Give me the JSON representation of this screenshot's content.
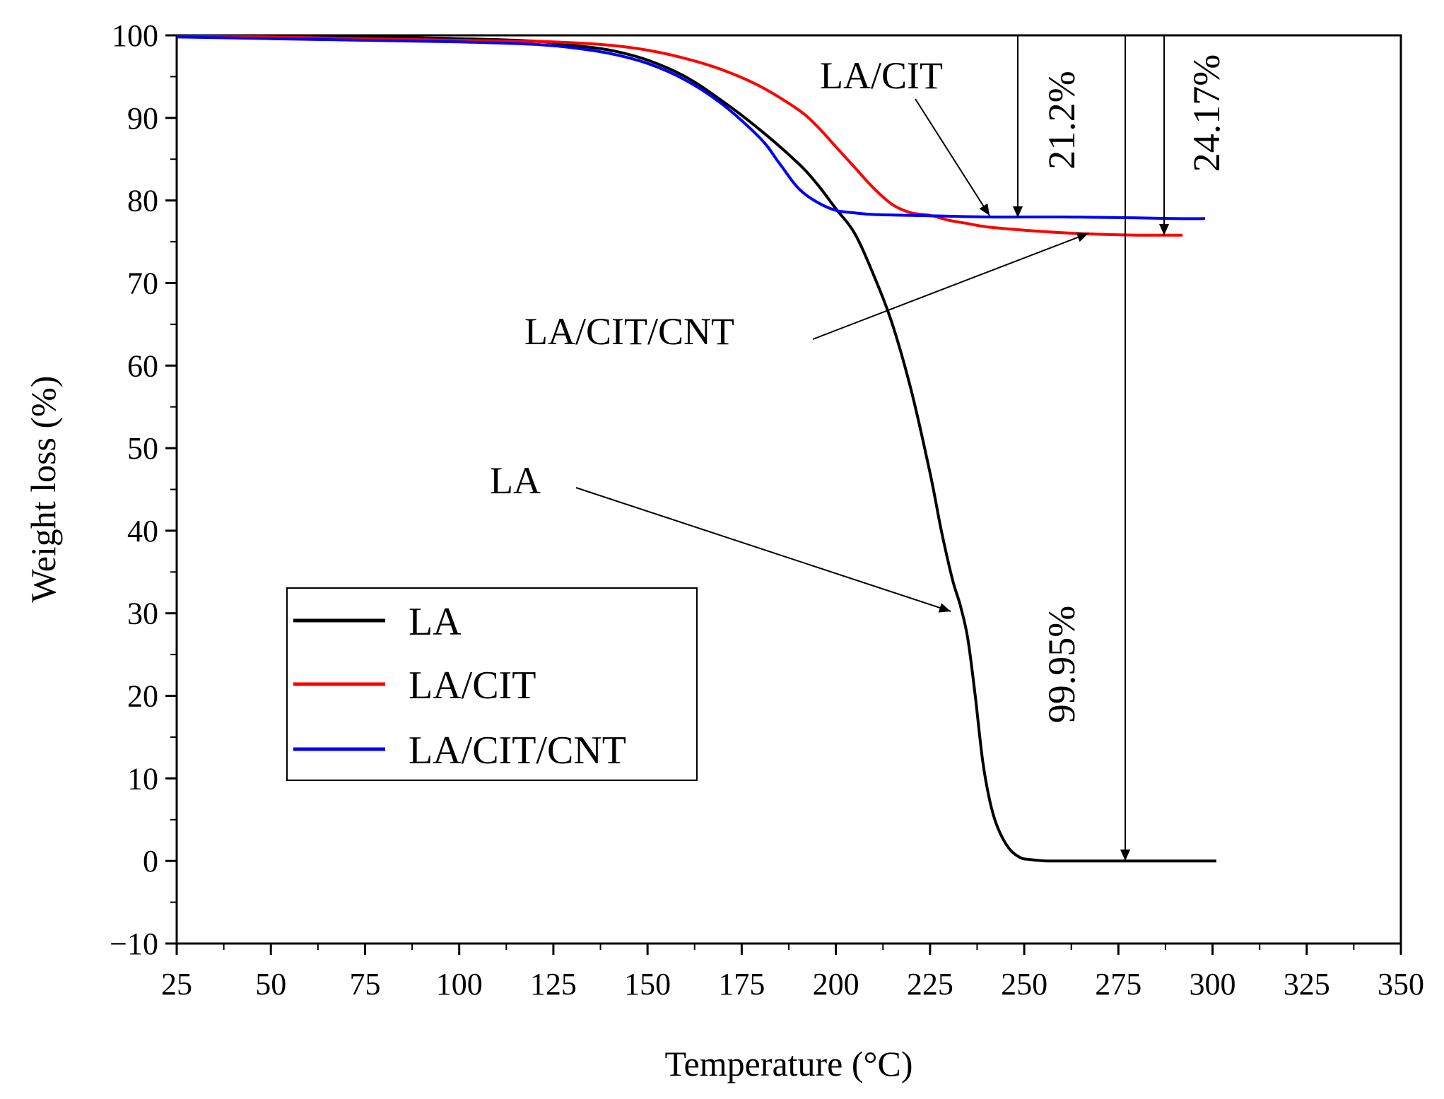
{
  "chart_data": {
    "type": "line",
    "title": "",
    "xlabel": "Temperature (°C)",
    "ylabel": "Weight loss (%)",
    "xlim": [
      25,
      350
    ],
    "ylim": [
      -10,
      100
    ],
    "x_ticks": [
      25,
      50,
      75,
      100,
      125,
      150,
      175,
      200,
      225,
      250,
      275,
      300,
      325,
      350
    ],
    "y_ticks": [
      -10,
      0,
      10,
      20,
      30,
      40,
      50,
      60,
      70,
      80,
      90,
      100
    ],
    "x_tick_labels": [
      "25",
      "50",
      "75",
      "100",
      "125",
      "150",
      "175",
      "200",
      "225",
      "250",
      "275",
      "300",
      "325",
      "350"
    ],
    "y_tick_labels": [
      "−10",
      "0",
      "10",
      "20",
      "30",
      "40",
      "50",
      "60",
      "70",
      "80",
      "90",
      "100"
    ],
    "grid": false,
    "legend_position": "bottom-left",
    "series": [
      {
        "name": "LA",
        "color": "#000000",
        "x": [
          25,
          50,
          75,
          100,
          120,
          130,
          140,
          150,
          160,
          170,
          180,
          190,
          195,
          200,
          205,
          210,
          215,
          220,
          225,
          228,
          231,
          233,
          235,
          237,
          239,
          241,
          243,
          246,
          249,
          251,
          253,
          256,
          260,
          270,
          280,
          290,
          301
        ],
        "y": [
          100,
          99.9,
          99.8,
          99.6,
          99.3,
          98.8,
          98.2,
          97,
          95,
          92,
          88.5,
          84.5,
          82,
          79,
          76,
          71,
          65,
          57,
          47,
          40,
          34,
          31,
          27,
          20,
          12,
          7,
          4,
          1.5,
          0.4,
          0.2,
          0.1,
          0,
          0,
          0,
          0,
          0,
          0
        ]
      },
      {
        "name": "LA/CIT",
        "color": "#ff0000",
        "x": [
          25,
          50,
          75,
          100,
          125,
          140,
          150,
          160,
          170,
          180,
          190,
          195,
          200,
          205,
          210,
          215,
          220,
          225,
          230,
          235,
          240,
          250,
          260,
          270,
          280,
          292
        ],
        "y": [
          100,
          99.8,
          99.6,
          99.4,
          99.2,
          98.8,
          98.2,
          97.2,
          95.8,
          93.8,
          91,
          89,
          86.5,
          84,
          81.5,
          79.5,
          78.5,
          78.2,
          77.6,
          77.2,
          76.8,
          76.4,
          76.1,
          75.9,
          75.8,
          75.8
        ]
      },
      {
        "name": "LA/CIT/CNT",
        "color": "#0000ff",
        "x": [
          25,
          50,
          75,
          100,
          120,
          130,
          140,
          150,
          160,
          170,
          180,
          185,
          190,
          195,
          200,
          205,
          210,
          220,
          240,
          260,
          280,
          290,
          298
        ],
        "y": [
          99.8,
          99.6,
          99.4,
          99.2,
          98.9,
          98.5,
          97.8,
          96.6,
          94.6,
          91.6,
          87.5,
          84.5,
          81.5,
          79.8,
          78.8,
          78.5,
          78.3,
          78.2,
          78,
          78,
          77.9,
          77.8,
          77.8
        ]
      }
    ],
    "annotations": {
      "la_cit": {
        "text": "LA/CIT"
      },
      "la_cit_cnt": {
        "text": "LA/CIT/CNT"
      },
      "la": {
        "text": "LA"
      },
      "pct_21": {
        "text": "21.2%"
      },
      "pct_24": {
        "text": "24.17%"
      },
      "pct_99": {
        "text": "99.95%"
      }
    }
  }
}
